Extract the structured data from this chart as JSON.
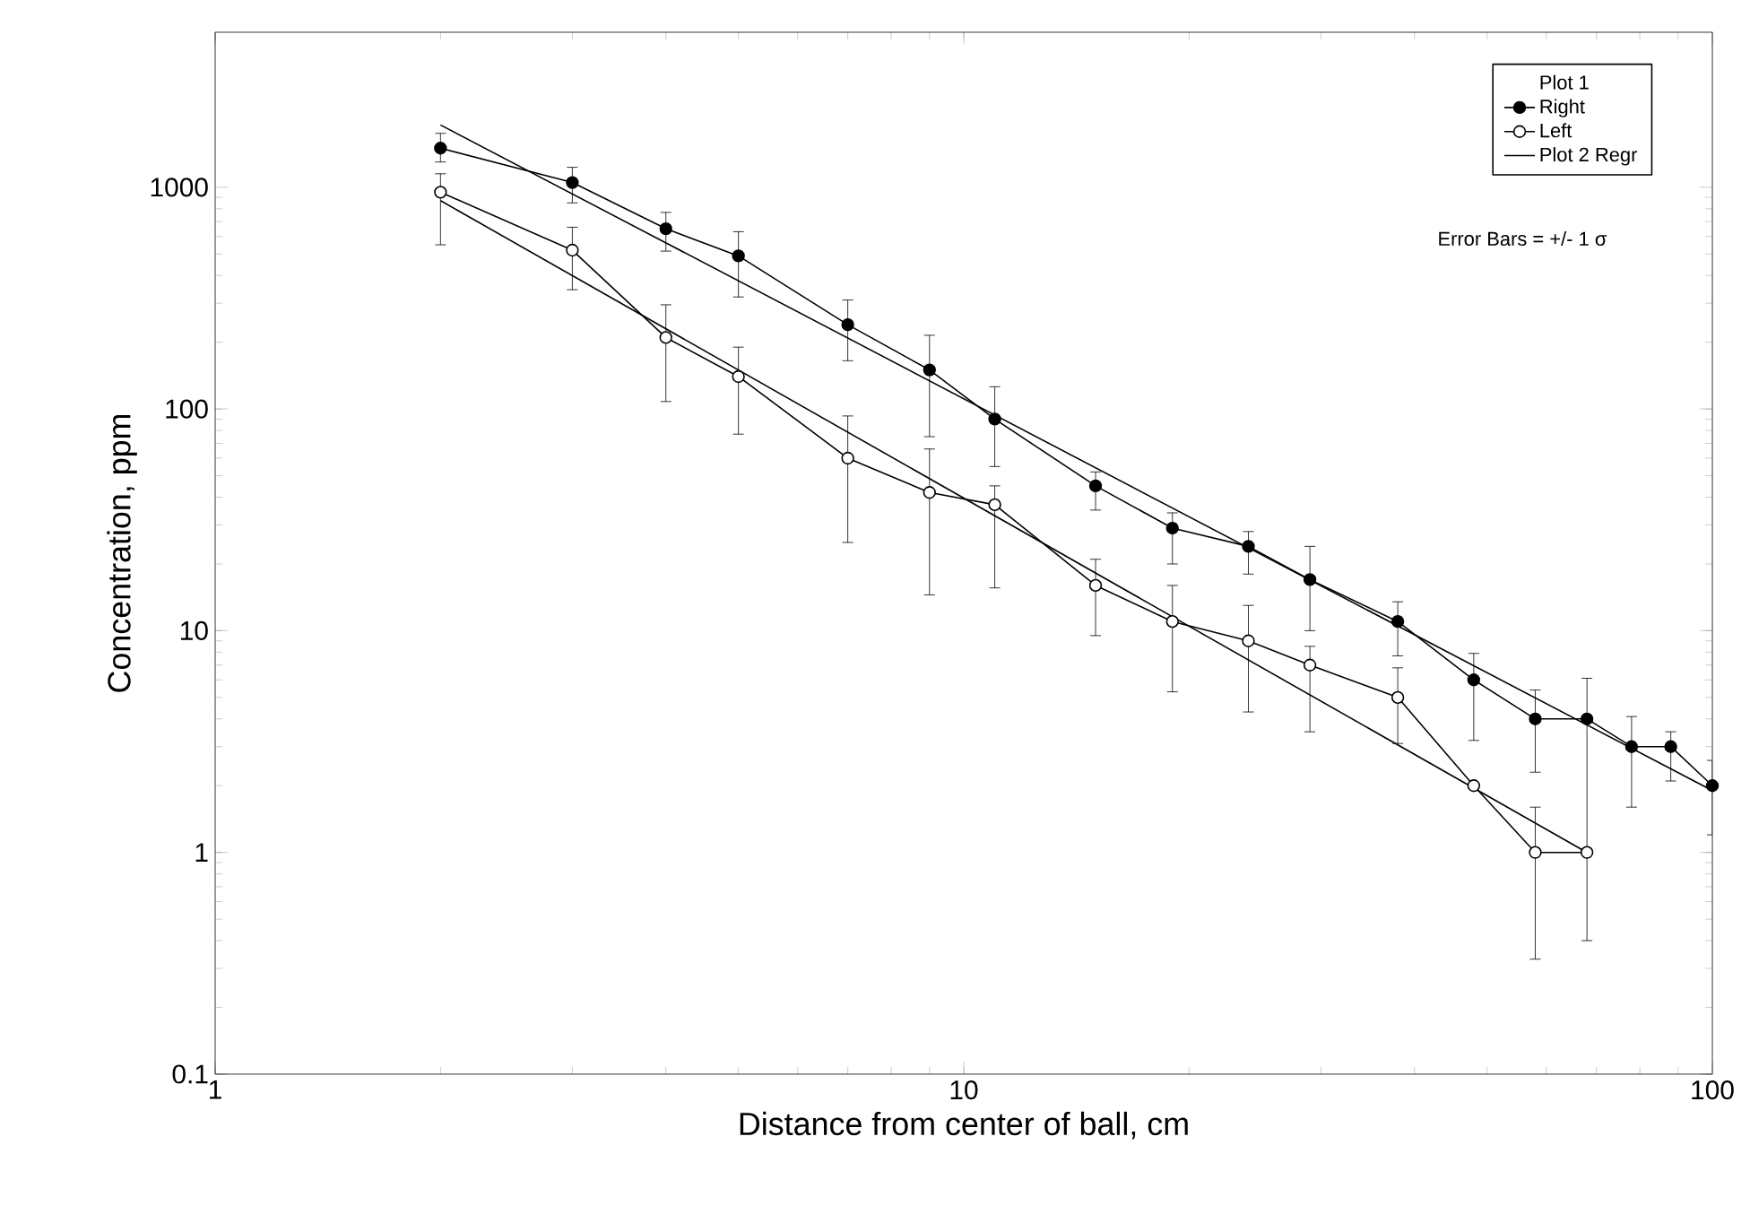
{
  "chart_data": {
    "type": "line",
    "xlabel": "Distance from center of ball, cm",
    "ylabel": "Concentration, ppm",
    "legend_title": "Plot 1",
    "annotations": [
      "Error Bars = +/- 1 σ"
    ],
    "log": "xy",
    "xlim": [
      1,
      100
    ],
    "ylim": [
      0.1,
      5000
    ],
    "xticks": [
      1,
      10,
      100
    ],
    "yticks": [
      0.1,
      1,
      10,
      100,
      1000
    ],
    "legend": "top right",
    "grid": false,
    "line_style": "solid",
    "series": [
      {
        "name": "Right",
        "color": "#000000",
        "marker": "circle",
        "x": [
          2,
          3,
          4,
          5,
          7,
          9,
          11,
          15,
          19,
          24,
          29,
          38,
          48,
          58,
          68,
          78,
          88,
          100
        ],
        "values": [
          1500,
          1050,
          650,
          490,
          240,
          150,
          90,
          45,
          29,
          24,
          17,
          11,
          6,
          4,
          4,
          3,
          3,
          2
        ],
        "errors": [
          [
            1300,
            1750
          ],
          [
            850,
            1230
          ],
          [
            515,
            770
          ],
          [
            320,
            630
          ],
          [
            165,
            310
          ],
          [
            75,
            215
          ],
          [
            55,
            126
          ],
          [
            35,
            52
          ],
          [
            20,
            34
          ],
          [
            18,
            28
          ],
          [
            10,
            24
          ],
          [
            7.7,
            13.5
          ],
          [
            3.2,
            7.9
          ],
          [
            2.3,
            5.4
          ],
          null,
          [
            1.6,
            4.1
          ],
          [
            2.1,
            3.5
          ],
          [
            1.2,
            2.6
          ]
        ]
      },
      {
        "name": "Left",
        "color": "#000000",
        "marker": "open circle",
        "x": [
          2,
          3,
          4,
          5,
          7,
          9,
          11,
          15,
          19,
          24,
          29,
          38,
          48,
          58,
          68
        ],
        "values": [
          950,
          520,
          210,
          140,
          60,
          42,
          37,
          16,
          11,
          9,
          7,
          5,
          2,
          1,
          1
        ],
        "errors": [
          [
            550,
            1150
          ],
          [
            345,
            660
          ],
          [
            108,
            295
          ],
          [
            77,
            190
          ],
          [
            25,
            93
          ],
          [
            14.5,
            66
          ],
          [
            15.6,
            45
          ],
          [
            9.5,
            21
          ],
          [
            5.3,
            16
          ],
          [
            4.3,
            13
          ],
          [
            3.5,
            8.5
          ],
          [
            3.1,
            6.8
          ],
          null,
          [
            0.33,
            1.6
          ],
          [
            0.4,
            6.1
          ]
        ]
      },
      {
        "name": "Plot 2 Regr",
        "color": "#000000",
        "marker": "none",
        "x": [
          2,
          100
        ],
        "values": [
          1910,
          1.9
        ]
      },
      {
        "color": "#000000",
        "marker": "none",
        "x": [
          2,
          68
        ],
        "values": [
          870,
          1.0
        ]
      }
    ]
  }
}
